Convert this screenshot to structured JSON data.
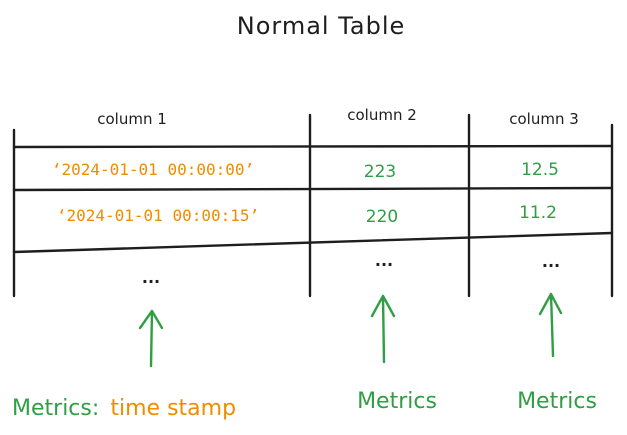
{
  "title": "Normal Table",
  "table": {
    "headers": [
      "column 1",
      "column 2",
      "column 3"
    ],
    "rows": [
      [
        "‘2024-01-01 00:00:00’",
        "223",
        "12.5"
      ],
      [
        "‘2024-01-01 00:00:15’",
        "220",
        "11.2"
      ],
      [
        "...",
        "...",
        "..."
      ]
    ]
  },
  "annotations": {
    "col1_prefix": "Metrics:",
    "col1_suffix": "time stamp",
    "col2": "Metrics",
    "col3": "Metrics"
  },
  "colors": {
    "ink": "#1e1e1e",
    "timestamp": "#f08c00",
    "metric": "#2f9e44"
  }
}
